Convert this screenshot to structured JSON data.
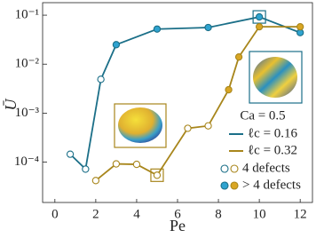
{
  "chart_data": {
    "type": "line",
    "x_label": "Pe",
    "y_label": "Ū",
    "y_scale": "log",
    "xlim": [
      -0.6,
      12.6
    ],
    "xticks": [
      0,
      2,
      4,
      6,
      8,
      10,
      12
    ],
    "ylim": [
      1.5e-05,
      0.18
    ],
    "yticks": [
      {
        "value": 0.0001,
        "label": "10⁻⁴"
      },
      {
        "value": 0.001,
        "label": "10⁻³"
      },
      {
        "value": 0.01,
        "label": "10⁻²"
      },
      {
        "value": 0.1,
        "label": "10⁻¹"
      }
    ],
    "legend_title": "Ca = 0.5",
    "legend_position": "lower right",
    "marker_legend": [
      "4 defects",
      "> 4 defects"
    ],
    "series": [
      {
        "name": "ℓc = 0.16",
        "color": "#1b6f88",
        "fill_color": "#2fa3d0",
        "x": [
          0.75,
          1.5,
          2.25,
          3,
          5,
          7.5,
          10,
          12
        ],
        "values": [
          0.000145,
          7.2e-05,
          0.0049,
          0.025,
          0.052,
          0.056,
          0.092,
          0.044
        ],
        "filled": [
          false,
          false,
          false,
          true,
          true,
          true,
          true,
          true
        ],
        "highlight": [
          6
        ]
      },
      {
        "name": "ℓc = 0.32",
        "color": "#a8861c",
        "fill_color": "#d9a624",
        "x": [
          2,
          3,
          4,
          5,
          6.5,
          7.5,
          8.5,
          9,
          10,
          12
        ],
        "values": [
          4.2e-05,
          9.2e-05,
          9e-05,
          5.4e-05,
          0.00049,
          0.00055,
          0.003,
          0.014,
          0.058,
          0.058
        ],
        "filled": [
          false,
          false,
          false,
          false,
          false,
          false,
          true,
          true,
          true,
          true
        ],
        "highlight": [
          3
        ]
      }
    ]
  }
}
